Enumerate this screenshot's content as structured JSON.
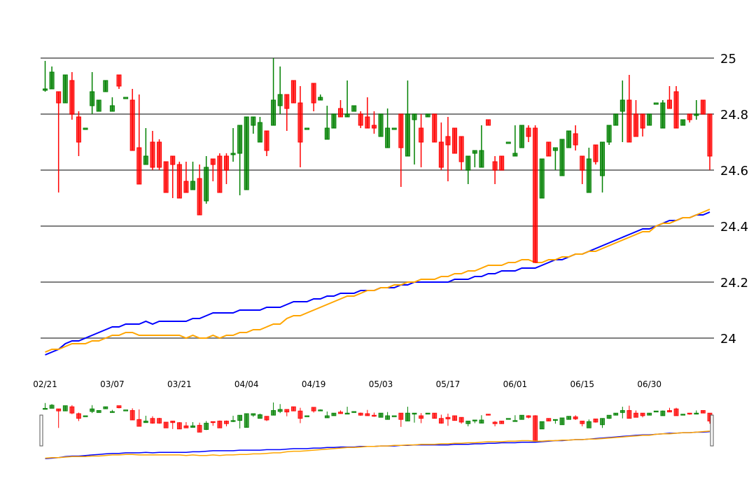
{
  "chart_data": {
    "type": "candlestick",
    "title": "",
    "xlabel": "",
    "ylabel": "",
    "ylim": [
      23.9,
      25.0
    ],
    "y_axis_position": "right",
    "y_ticks": [
      "24",
      "24.2",
      "24.4",
      "24.6",
      "24.8",
      "25"
    ],
    "x_tick_labels": [
      "02/21",
      "03/07",
      "03/21",
      "04/04",
      "04/19",
      "05/03",
      "05/17",
      "06/01",
      "06/15",
      "06/30"
    ],
    "x_tick_indices": [
      0,
      10,
      20,
      30,
      40,
      50,
      60,
      70,
      80,
      90
    ],
    "grid": "horizontal",
    "colors": {
      "up": "#008000",
      "down": "#ff0000",
      "ma_fast": "#0000ff",
      "ma_slow": "#ffa500",
      "grid": "#808080"
    },
    "ohlc": [
      [
        24.89,
        24.99,
        24.88,
        24.89
      ],
      [
        24.89,
        24.97,
        24.89,
        24.95
      ],
      [
        24.88,
        24.88,
        24.52,
        24.84
      ],
      [
        24.84,
        24.94,
        24.84,
        24.94
      ],
      [
        24.92,
        24.95,
        24.78,
        24.8
      ],
      [
        24.79,
        24.81,
        24.65,
        24.7
      ],
      [
        24.75,
        24.75,
        24.75,
        24.75
      ],
      [
        24.83,
        24.95,
        24.8,
        24.88
      ],
      [
        24.81,
        24.85,
        24.81,
        24.85
      ],
      [
        24.88,
        24.92,
        24.88,
        24.92
      ],
      [
        24.81,
        24.86,
        24.81,
        24.83
      ],
      [
        24.94,
        24.94,
        24.89,
        24.9
      ],
      [
        24.86,
        24.86,
        24.86,
        24.86
      ],
      [
        24.85,
        24.89,
        24.67,
        24.67
      ],
      [
        24.68,
        24.87,
        24.55,
        24.55
      ],
      [
        24.62,
        24.75,
        24.62,
        24.65
      ],
      [
        24.7,
        24.74,
        24.6,
        24.61
      ],
      [
        24.7,
        24.71,
        24.6,
        24.61
      ],
      [
        24.63,
        24.63,
        24.52,
        24.52
      ],
      [
        24.65,
        24.65,
        24.5,
        24.62
      ],
      [
        24.62,
        24.63,
        24.5,
        24.5
      ],
      [
        24.56,
        24.63,
        24.52,
        24.52
      ],
      [
        24.53,
        24.63,
        24.53,
        24.56
      ],
      [
        24.57,
        24.62,
        24.44,
        24.44
      ],
      [
        24.49,
        24.65,
        24.48,
        24.61
      ],
      [
        24.64,
        24.64,
        24.56,
        24.62
      ],
      [
        24.65,
        24.66,
        24.52,
        24.52
      ],
      [
        24.65,
        24.66,
        24.55,
        24.6
      ],
      [
        24.66,
        24.75,
        24.63,
        24.66
      ],
      [
        24.66,
        24.76,
        24.51,
        24.76
      ],
      [
        24.53,
        24.79,
        24.53,
        24.79
      ],
      [
        24.76,
        24.79,
        24.73,
        24.79
      ],
      [
        24.7,
        24.79,
        24.7,
        24.77
      ],
      [
        24.74,
        24.74,
        24.65,
        24.67
      ],
      [
        24.76,
        25.0,
        24.76,
        24.85
      ],
      [
        24.83,
        24.97,
        24.8,
        24.87
      ],
      [
        24.87,
        24.87,
        24.74,
        24.82
      ],
      [
        24.92,
        24.92,
        24.84,
        24.84
      ],
      [
        24.84,
        24.9,
        24.61,
        24.7
      ],
      [
        24.75,
        24.75,
        24.75,
        24.75
      ],
      [
        24.91,
        24.91,
        24.81,
        24.84
      ],
      [
        24.85,
        24.87,
        24.85,
        24.86
      ],
      [
        24.71,
        24.83,
        24.71,
        24.75
      ],
      [
        24.75,
        24.8,
        24.75,
        24.8
      ],
      [
        24.82,
        24.85,
        24.79,
        24.79
      ],
      [
        24.79,
        24.92,
        24.79,
        24.8
      ],
      [
        24.81,
        24.83,
        24.81,
        24.83
      ],
      [
        24.8,
        24.81,
        24.75,
        24.76
      ],
      [
        24.79,
        24.86,
        24.75,
        24.75
      ],
      [
        24.76,
        24.81,
        24.73,
        24.75
      ],
      [
        24.72,
        24.8,
        24.72,
        24.8
      ],
      [
        24.68,
        24.82,
        24.68,
        24.75
      ],
      [
        24.75,
        24.75,
        24.75,
        24.75
      ],
      [
        24.8,
        24.8,
        24.54,
        24.68
      ],
      [
        24.65,
        24.92,
        24.65,
        24.8
      ],
      [
        24.78,
        24.8,
        24.62,
        24.8
      ],
      [
        24.75,
        24.8,
        24.61,
        24.7
      ],
      [
        24.79,
        24.8,
        24.79,
        24.8
      ],
      [
        24.8,
        24.8,
        24.7,
        24.7
      ],
      [
        24.7,
        24.77,
        24.6,
        24.61
      ],
      [
        24.72,
        24.79,
        24.56,
        24.69
      ],
      [
        24.75,
        24.75,
        24.66,
        24.66
      ],
      [
        24.72,
        24.72,
        24.6,
        24.63
      ],
      [
        24.6,
        24.65,
        24.55,
        24.65
      ],
      [
        24.66,
        24.67,
        24.61,
        24.67
      ],
      [
        24.61,
        24.76,
        24.61,
        24.67
      ],
      [
        24.78,
        24.78,
        24.76,
        24.76
      ],
      [
        24.63,
        24.65,
        24.55,
        24.6
      ],
      [
        24.65,
        24.65,
        24.6,
        24.6
      ],
      [
        24.7,
        24.7,
        24.7,
        24.7
      ],
      [
        24.65,
        24.76,
        24.65,
        24.66
      ],
      [
        24.68,
        24.76,
        24.68,
        24.76
      ],
      [
        24.75,
        24.76,
        24.7,
        24.72
      ],
      [
        24.75,
        24.76,
        24.27,
        24.27
      ],
      [
        24.5,
        24.64,
        24.5,
        24.64
      ],
      [
        24.7,
        24.7,
        24.65,
        24.65
      ],
      [
        24.67,
        24.68,
        24.6,
        24.68
      ],
      [
        24.58,
        24.71,
        24.58,
        24.71
      ],
      [
        24.68,
        24.74,
        24.68,
        24.74
      ],
      [
        24.73,
        24.76,
        24.67,
        24.69
      ],
      [
        24.65,
        24.65,
        24.55,
        24.6
      ],
      [
        24.52,
        24.68,
        24.52,
        24.64
      ],
      [
        24.69,
        24.69,
        24.62,
        24.63
      ],
      [
        24.58,
        24.7,
        24.52,
        24.7
      ],
      [
        24.7,
        24.76,
        24.69,
        24.76
      ],
      [
        24.76,
        24.8,
        24.76,
        24.8
      ],
      [
        24.81,
        24.92,
        24.7,
        24.85
      ],
      [
        24.85,
        24.94,
        24.7,
        24.7
      ],
      [
        24.8,
        24.85,
        24.72,
        24.72
      ],
      [
        24.8,
        24.8,
        24.72,
        24.75
      ],
      [
        24.76,
        24.8,
        24.76,
        24.8
      ],
      [
        24.84,
        24.84,
        24.84,
        24.84
      ],
      [
        24.75,
        24.85,
        24.75,
        24.84
      ],
      [
        24.85,
        24.9,
        24.82,
        24.82
      ],
      [
        24.88,
        24.9,
        24.75,
        24.75
      ],
      [
        24.76,
        24.78,
        24.76,
        24.78
      ],
      [
        24.8,
        24.8,
        24.77,
        24.78
      ],
      [
        24.8,
        24.85,
        24.78,
        24.8
      ],
      [
        24.85,
        24.85,
        24.8,
        24.8
      ],
      [
        24.8,
        24.8,
        24.6,
        24.65
      ]
    ],
    "series": [
      {
        "values": [
          23.94,
          23.95,
          23.96,
          23.98,
          23.99,
          23.99,
          24.0,
          24.01,
          24.02,
          24.03,
          24.04,
          24.04,
          24.05,
          24.05,
          24.05,
          24.06,
          24.05,
          24.06,
          24.06,
          24.06,
          24.06,
          24.06,
          24.07,
          24.07,
          24.08,
          24.09,
          24.09,
          24.09,
          24.09,
          24.1,
          24.1,
          24.1,
          24.1,
          24.11,
          24.11,
          24.11,
          24.12,
          24.13,
          24.13,
          24.13,
          24.14,
          24.14,
          24.15,
          24.15,
          24.16,
          24.16,
          24.16,
          24.17,
          24.17,
          24.17,
          24.18,
          24.18,
          24.18,
          24.19,
          24.19,
          24.2,
          24.2,
          24.2,
          24.2,
          24.2,
          24.2,
          24.21,
          24.21,
          24.21,
          24.22,
          24.22,
          24.23,
          24.23,
          24.24,
          24.24,
          24.24,
          24.25,
          24.25,
          24.25,
          24.26,
          24.27,
          24.28,
          24.28,
          24.29,
          24.3,
          24.3,
          24.31,
          24.32,
          24.33,
          24.34,
          24.35,
          24.36,
          24.37,
          24.38,
          24.39,
          24.39,
          24.4,
          24.41,
          24.42,
          24.42,
          24.43,
          24.43,
          24.44,
          24.44,
          24.45
        ]
      },
      {
        "values": [
          23.95,
          23.96,
          23.96,
          23.97,
          23.98,
          23.98,
          23.98,
          23.99,
          23.99,
          24.0,
          24.01,
          24.01,
          24.02,
          24.02,
          24.01,
          24.01,
          24.01,
          24.01,
          24.01,
          24.01,
          24.01,
          24.0,
          24.01,
          24.0,
          24.0,
          24.01,
          24.0,
          24.01,
          24.01,
          24.02,
          24.02,
          24.03,
          24.03,
          24.04,
          24.05,
          24.05,
          24.07,
          24.08,
          24.08,
          24.09,
          24.1,
          24.11,
          24.12,
          24.13,
          24.14,
          24.15,
          24.15,
          24.16,
          24.17,
          24.17,
          24.18,
          24.18,
          24.19,
          24.19,
          24.2,
          24.2,
          24.21,
          24.21,
          24.21,
          24.22,
          24.22,
          24.23,
          24.23,
          24.24,
          24.24,
          24.25,
          24.26,
          24.26,
          24.26,
          24.27,
          24.27,
          24.28,
          24.28,
          24.27,
          24.27,
          24.28,
          24.28,
          24.29,
          24.29,
          24.3,
          24.3,
          24.31,
          24.31,
          24.32,
          24.33,
          24.34,
          24.35,
          24.36,
          24.37,
          24.38,
          24.38,
          24.4,
          24.41,
          24.41,
          24.42,
          24.43,
          24.43,
          24.44,
          24.45,
          24.46
        ]
      }
    ]
  }
}
